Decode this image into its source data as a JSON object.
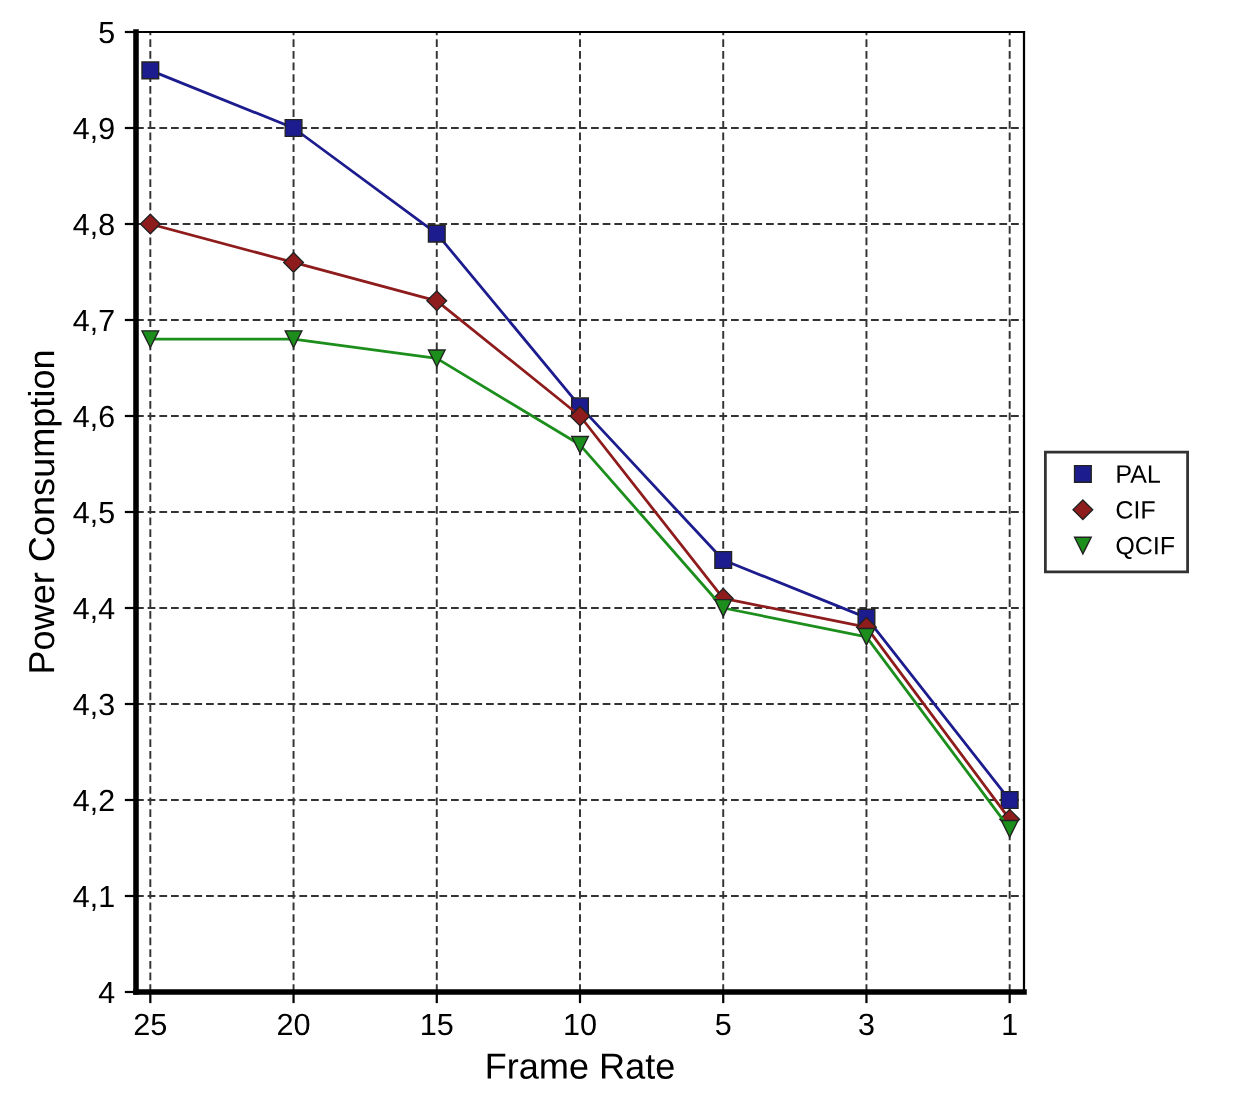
{
  "chart_data": {
    "type": "line",
    "xlabel": "Frame Rate",
    "ylabel": "Power Consumption",
    "categories": [
      "25",
      "20",
      "15",
      "10",
      "5",
      "3",
      "1"
    ],
    "series": [
      {
        "name": "PAL",
        "color": "#1c1c8e",
        "marker": "square",
        "values": [
          4.96,
          4.9,
          4.79,
          4.61,
          4.45,
          4.39,
          4.2
        ]
      },
      {
        "name": "CIF",
        "color": "#8e1c1c",
        "marker": "diamond",
        "values": [
          4.8,
          4.76,
          4.72,
          4.6,
          4.41,
          4.38,
          4.18
        ]
      },
      {
        "name": "QCIF",
        "color": "#1c8e1c",
        "marker": "triangle",
        "values": [
          4.68,
          4.68,
          4.66,
          4.57,
          4.4,
          4.37,
          4.17
        ]
      }
    ],
    "ylim": [
      4,
      5
    ],
    "yticks": [
      4,
      {
        "value": 4.1,
        "label": "4,1"
      },
      {
        "value": 4.2,
        "label": "4,2"
      },
      {
        "value": 4.3,
        "label": "4,3"
      },
      {
        "value": 4.4,
        "label": "4,4"
      },
      {
        "value": 4.5,
        "label": "4,5"
      },
      {
        "value": 4.6,
        "label": "4,6"
      },
      {
        "value": 4.7,
        "label": "4,7"
      },
      {
        "value": 4.8,
        "label": "4,8"
      },
      {
        "value": 4.9,
        "label": "4,9"
      },
      5
    ],
    "grid": true,
    "legend": "right",
    "line_style": "solid"
  }
}
